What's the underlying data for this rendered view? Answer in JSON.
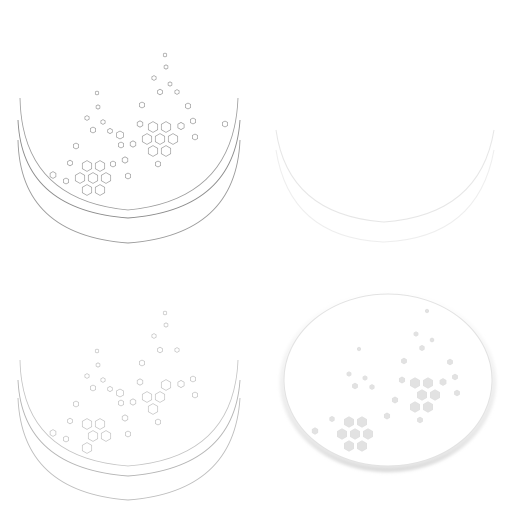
{
  "panels": [
    {
      "name": "panel-top-left",
      "style": "outline-dark"
    },
    {
      "name": "panel-top-right",
      "style": "faint-blank"
    },
    {
      "name": "panel-bottom-left",
      "style": "outline-light"
    },
    {
      "name": "panel-bottom-right",
      "style": "filled-soft"
    }
  ],
  "colors": {
    "background": "#ffffff",
    "outline_dark": "#8a8a8a",
    "outline_light": "#b4b4b4",
    "faint": "#e4e4e4",
    "fill_soft": "#dcdcdc"
  }
}
